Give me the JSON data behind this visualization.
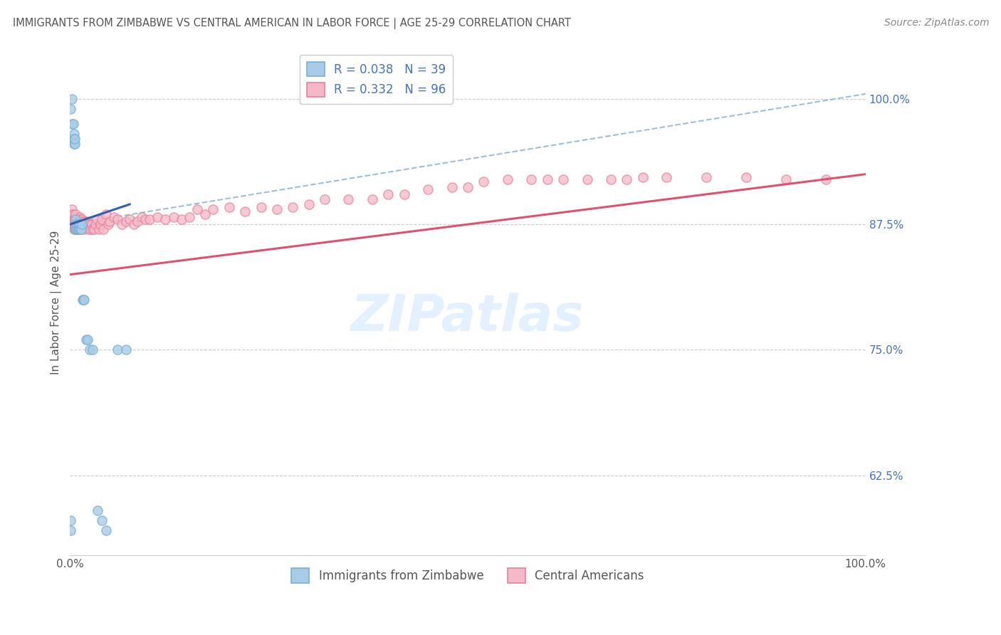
{
  "title": "IMMIGRANTS FROM ZIMBABWE VS CENTRAL AMERICAN IN LABOR FORCE | AGE 25-29 CORRELATION CHART",
  "source": "Source: ZipAtlas.com",
  "ylabel": "In Labor Force | Age 25-29",
  "legend_label1": "Immigrants from Zimbabwe",
  "legend_label2": "Central Americans",
  "blue_scatter_color": "#a8cce8",
  "blue_scatter_edge": "#7aafd4",
  "pink_scatter_color": "#f4b8c8",
  "pink_scatter_edge": "#e88098",
  "blue_line_color": "#3060b0",
  "pink_line_color": "#e05070",
  "dash_line_color": "#90b8d8",
  "legend_text_color": "#4472C4",
  "ytick_color": "#4472C4",
  "grid_color": "#cccccc",
  "title_color": "#555555",
  "source_color": "#888888",
  "ylabel_color": "#555555",
  "watermark_color": "#ddeeff",
  "blue_x": [
    0.002,
    0.002,
    0.003,
    0.004,
    0.004,
    0.005,
    0.005,
    0.005,
    0.006,
    0.006,
    0.007,
    0.007,
    0.008,
    0.008,
    0.009,
    0.009,
    0.01,
    0.01,
    0.011,
    0.011,
    0.012,
    0.013,
    0.014,
    0.015,
    0.016,
    0.017,
    0.018,
    0.02,
    0.022,
    0.025,
    0.028,
    0.035,
    0.04,
    0.045,
    0.06,
    0.07,
    0.001,
    0.001,
    0.001
  ],
  "blue_y": [
    1.0,
    0.975,
    0.96,
    0.96,
    0.975,
    0.955,
    0.96,
    0.965,
    0.955,
    0.96,
    0.87,
    0.88,
    0.87,
    0.875,
    0.87,
    0.875,
    0.87,
    0.875,
    0.87,
    0.875,
    0.875,
    0.87,
    0.87,
    0.875,
    0.8,
    0.8,
    0.8,
    0.76,
    0.76,
    0.75,
    0.75,
    0.59,
    0.58,
    0.57,
    0.75,
    0.75,
    0.58,
    0.57,
    0.99
  ],
  "pink_x": [
    0.001,
    0.002,
    0.002,
    0.003,
    0.003,
    0.004,
    0.004,
    0.005,
    0.005,
    0.006,
    0.006,
    0.007,
    0.007,
    0.008,
    0.008,
    0.009,
    0.009,
    0.01,
    0.01,
    0.011,
    0.011,
    0.012,
    0.012,
    0.013,
    0.014,
    0.014,
    0.015,
    0.016,
    0.017,
    0.018,
    0.019,
    0.02,
    0.021,
    0.022,
    0.023,
    0.024,
    0.025,
    0.026,
    0.027,
    0.028,
    0.03,
    0.032,
    0.034,
    0.036,
    0.038,
    0.04,
    0.042,
    0.045,
    0.048,
    0.05,
    0.055,
    0.06,
    0.065,
    0.07,
    0.075,
    0.08,
    0.085,
    0.09,
    0.095,
    0.1,
    0.11,
    0.12,
    0.13,
    0.14,
    0.15,
    0.16,
    0.17,
    0.18,
    0.2,
    0.22,
    0.24,
    0.26,
    0.28,
    0.3,
    0.32,
    0.35,
    0.38,
    0.4,
    0.42,
    0.45,
    0.48,
    0.5,
    0.52,
    0.55,
    0.58,
    0.6,
    0.62,
    0.65,
    0.68,
    0.7,
    0.72,
    0.75,
    0.8,
    0.85,
    0.9,
    0.95
  ],
  "pink_y": [
    0.875,
    0.88,
    0.89,
    0.885,
    0.875,
    0.875,
    0.885,
    0.87,
    0.88,
    0.87,
    0.88,
    0.875,
    0.885,
    0.87,
    0.878,
    0.88,
    0.87,
    0.878,
    0.87,
    0.878,
    0.87,
    0.882,
    0.875,
    0.88,
    0.87,
    0.878,
    0.88,
    0.878,
    0.875,
    0.87,
    0.878,
    0.875,
    0.875,
    0.878,
    0.87,
    0.875,
    0.875,
    0.87,
    0.875,
    0.87,
    0.87,
    0.875,
    0.88,
    0.87,
    0.875,
    0.88,
    0.87,
    0.885,
    0.875,
    0.878,
    0.882,
    0.88,
    0.875,
    0.878,
    0.88,
    0.875,
    0.878,
    0.882,
    0.88,
    0.88,
    0.882,
    0.88,
    0.882,
    0.88,
    0.882,
    0.89,
    0.885,
    0.89,
    0.892,
    0.888,
    0.892,
    0.89,
    0.892,
    0.895,
    0.9,
    0.9,
    0.9,
    0.905,
    0.905,
    0.91,
    0.912,
    0.912,
    0.918,
    0.92,
    0.92,
    0.92,
    0.92,
    0.92,
    0.92,
    0.92,
    0.922,
    0.922,
    0.922,
    0.922,
    0.92,
    0.92
  ],
  "blue_trend_x": [
    0.0,
    0.075
  ],
  "blue_trend_y": [
    0.875,
    0.895
  ],
  "pink_trend_x": [
    0.0,
    1.0
  ],
  "pink_trend_y": [
    0.825,
    0.925
  ],
  "dash_trend_x": [
    0.0,
    1.0
  ],
  "dash_trend_y": [
    0.875,
    1.005
  ],
  "xmin": 0.0,
  "xmax": 1.0,
  "ymin": 0.545,
  "ymax": 1.05,
  "yticks": [
    0.625,
    0.75,
    0.875,
    1.0
  ],
  "ytick_labels": [
    "62.5%",
    "75.0%",
    "87.5%",
    "100.0%"
  ]
}
